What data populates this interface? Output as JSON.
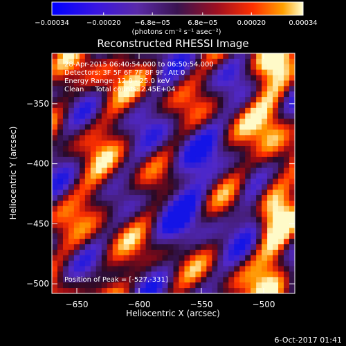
{
  "chart_data": {
    "type": "heatmap",
    "title": "Reconstructed RHESSI Image",
    "xlabel": "Heliocentric X (arcsec)",
    "ylabel": "Heliocentric Y (arcsec)",
    "xlim": [
      -670,
      -475
    ],
    "ylim": [
      -508,
      -308
    ],
    "xticks": [
      -650,
      -600,
      -550,
      -500
    ],
    "yticks": [
      -350,
      -400,
      -450,
      -500
    ],
    "x_tick_labels": [
      "−650",
      "−600",
      "−550",
      "−500"
    ],
    "y_tick_labels": [
      "−350",
      "−400",
      "−450",
      "−500"
    ],
    "colorbar": {
      "range": [
        -0.00034,
        0.00034
      ],
      "ticks": [
        -0.00034,
        -0.0002,
        -6.8e-05,
        6.8e-05,
        0.0002,
        0.00034
      ],
      "tick_labels": [
        "−0.00034",
        "−0.00020",
        "−6.8e−05",
        "6.8e−05",
        "0.00020",
        "0.00034"
      ],
      "unit": "(photons cm⁻² s⁻¹ asec⁻²)"
    },
    "annotations": {
      "time": "28-Apr-2015 06:40:54.000 to 06:50:54.000",
      "detectors": "Detectors: 3F 5F 6F 7F 8F 9F, Att 0",
      "energy": "Energy Range: 12.0 - 25.0 keV",
      "clean": "Clean     Total counts: 2.45E+04",
      "peak": "Position of Peak = [-527,-331]"
    },
    "peak_position": [
      -527,
      -331
    ],
    "grid": false
  },
  "footer": {
    "date": "6-Oct-2017 01:41"
  }
}
